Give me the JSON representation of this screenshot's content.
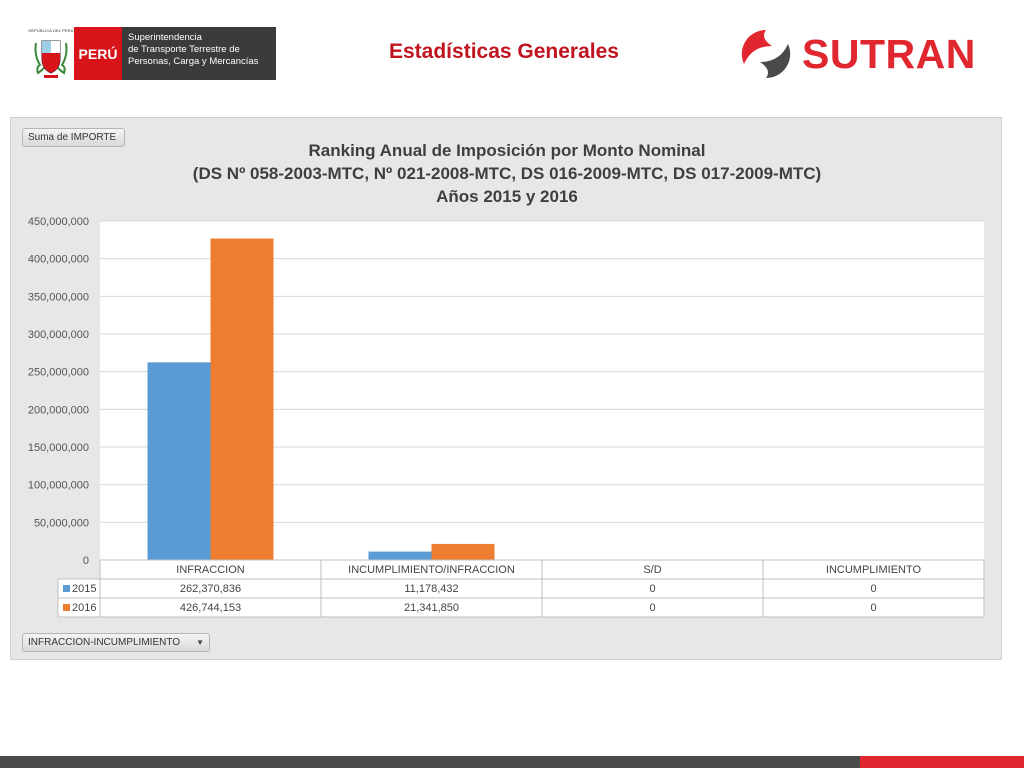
{
  "header": {
    "republic_label": "REPÚBLICA DEL PERÚ",
    "country": "PERÚ",
    "entity_lines": [
      "Superintendencia",
      "de Transporte Terrestre de",
      "Personas, Carga y Mercancías"
    ],
    "slide_title": "Estadísticas Generales",
    "brand": "SUTRAN",
    "brand_color": "#e0262f"
  },
  "pivot": {
    "value_field": "Suma de IMPORTE",
    "row_field": "INFRACCION-INCUMPLIMIENTO"
  },
  "chart_data": {
    "type": "bar",
    "title_lines": [
      "Ranking Anual de Imposición por Monto Nominal",
      "(DS Nº 058-2003-MTC, Nº 021-2008-MTC, DS 016-2009-MTC, DS 017-2009-MTC)",
      "Años 2015 y 2016"
    ],
    "categories": [
      "INFRACCION",
      "INCUMPLIMIENTO/INFRACCION",
      "S/D",
      "INCUMPLIMIENTO"
    ],
    "series": [
      {
        "name": "2015",
        "color": "#5b9bd5",
        "values": [
          262370836,
          11178432,
          0,
          0
        ],
        "labels": [
          "262,370,836",
          "11,178,432",
          "0",
          "0"
        ]
      },
      {
        "name": "2016",
        "color": "#ed7d31",
        "values": [
          426744153,
          21341850,
          0,
          0
        ],
        "labels": [
          "426,744,153",
          "21,341,850",
          "0",
          "0"
        ]
      }
    ],
    "ylim": [
      0,
      450000000
    ],
    "yticks": [
      0,
      50000000,
      100000000,
      150000000,
      200000000,
      250000000,
      300000000,
      350000000,
      400000000,
      450000000
    ],
    "ytick_labels": [
      "0",
      "50,000,000",
      "100,000,000",
      "150,000,000",
      "200,000,000",
      "250,000,000",
      "300,000,000",
      "350,000,000",
      "400,000,000",
      "450,000,000"
    ],
    "grid": true,
    "legend": "data-table"
  }
}
